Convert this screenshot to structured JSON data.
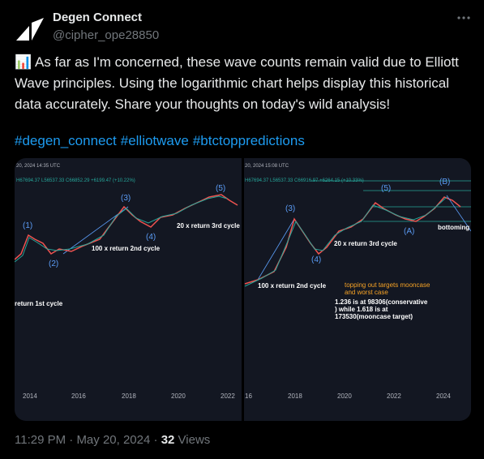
{
  "author": {
    "name": "Degen Connect",
    "handle": "@cipher_ope28850"
  },
  "text_lines": [
    "📊 As far as I'm concerned, these wave counts remain valid due to Elliott",
    "Wave principles. Using the logarithmic chart helps display this historical",
    "data accurately. Share your thoughts on today's wild analysis!"
  ],
  "hashtags": [
    "#degen_connect",
    "#elliotwave",
    "#btctoppredictions"
  ],
  "image": {
    "left": {
      "header": "20, 2024 14:35 UTC",
      "ohlc": "H67694.37 L56537.33 C66852.29 +6199.47 (+10.22%)",
      "waves": [
        "(1)",
        "(2)",
        "(3)",
        "(4)",
        "(5)"
      ],
      "notes": [
        "100 x  return 2nd cycle",
        "20 x return 3rd cycle",
        "return 1st cycle"
      ],
      "years": [
        "2014",
        "2016",
        "2018",
        "2020",
        "2022"
      ]
    },
    "right": {
      "header": "20, 2024 15:08 UTC",
      "ohlc": "H67694.37 L56537.33 C66916.97 +6264.15 (+10.33%)",
      "waves": [
        "(3)",
        "(4)",
        "(5)",
        "(A)",
        "(B)"
      ],
      "notes": [
        "100 x  return 2nd cycle",
        "20 x return 3rd cycle",
        "bottoming o",
        "topping out targets mooncase",
        "and worst case",
        "1.236 is at  98306(conservative",
        ")  while 1.618 is at",
        "173530(mooncase target)"
      ],
      "years": [
        "16",
        "2018",
        "2020",
        "2022",
        "2024"
      ]
    }
  },
  "footer": {
    "time": "11:29 PM",
    "separator": "·",
    "date": "May 20, 2024",
    "views": "32",
    "views_label": "Views"
  }
}
